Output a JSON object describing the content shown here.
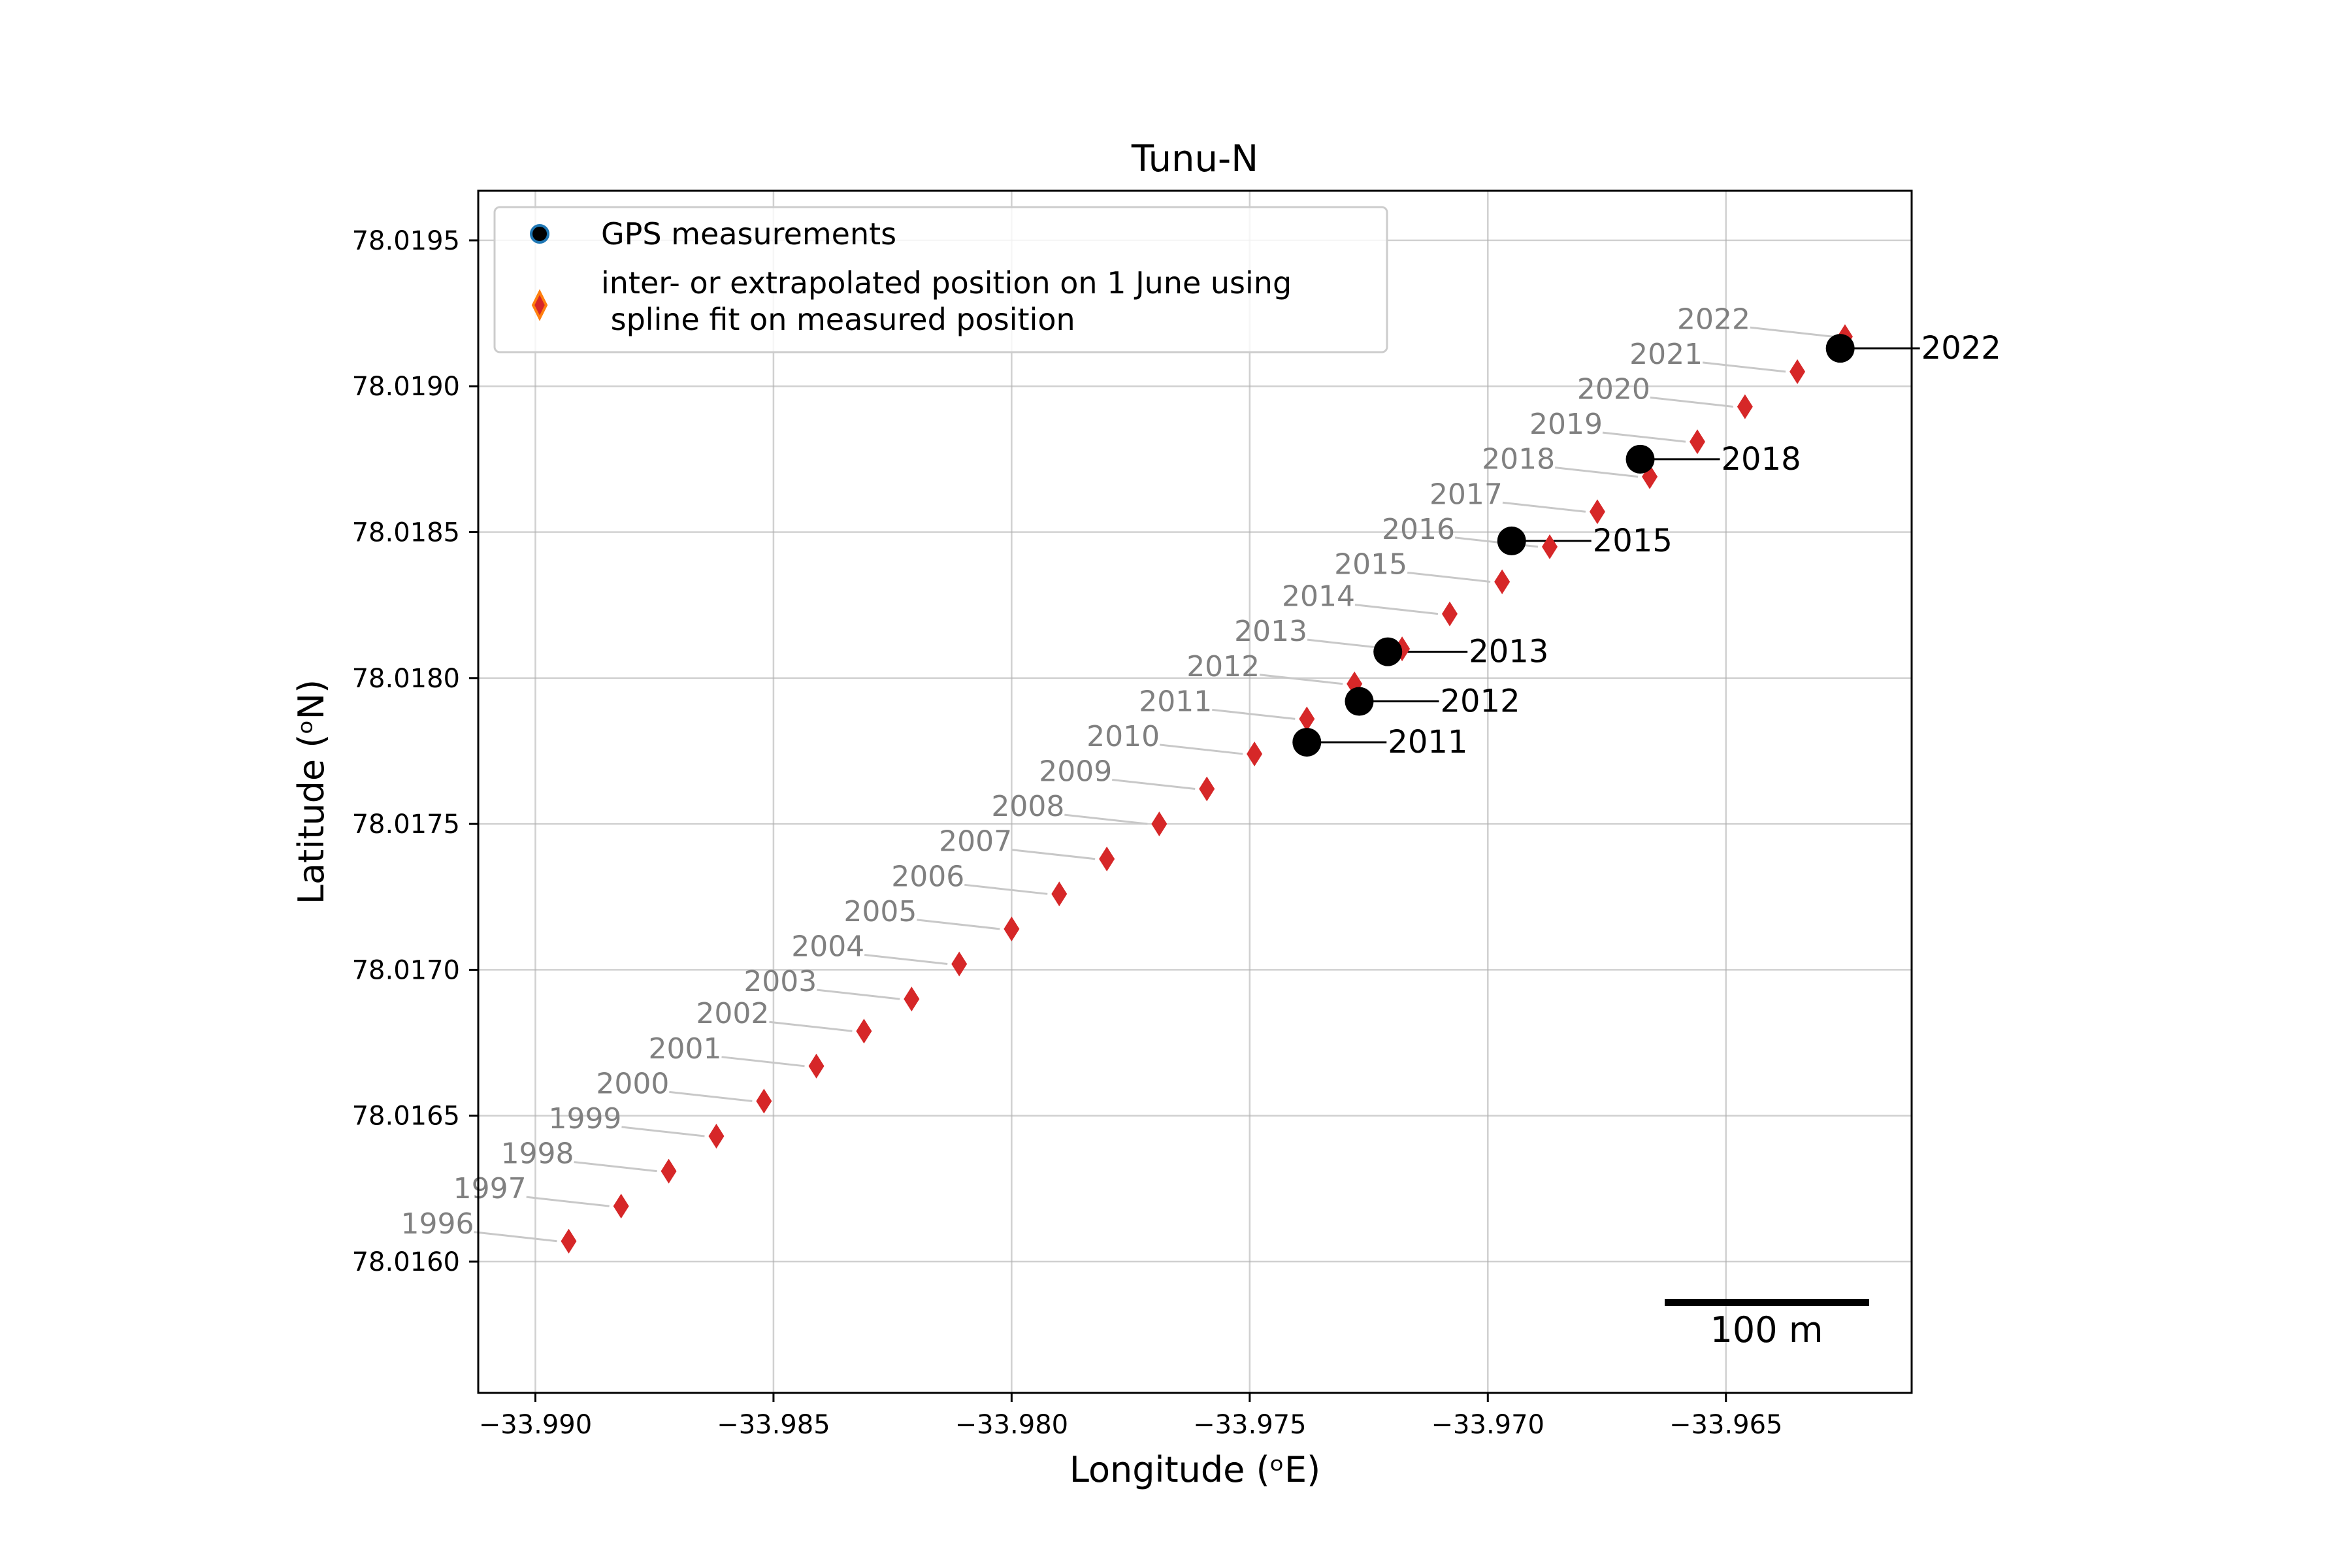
{
  "chart_data": {
    "type": "scatter",
    "title": "Tunu-N",
    "xlabel": "Longitude (ᵒE)",
    "ylabel": "Latitude (ᵒN)",
    "xlim": [
      -33.9912,
      -33.9611
    ],
    "ylim": [
      78.01555,
      78.01967
    ],
    "grid": true,
    "legend_position": "upper-left",
    "x_ticks": [
      -33.99,
      -33.985,
      -33.98,
      -33.975,
      -33.97,
      -33.965
    ],
    "x_tick_labels": [
      "−33.990",
      "−33.985",
      "−33.980",
      "−33.975",
      "−33.970",
      "−33.965"
    ],
    "y_ticks": [
      78.016,
      78.0165,
      78.017,
      78.0175,
      78.018,
      78.0185,
      78.019,
      78.0195
    ],
    "y_tick_labels": [
      "78.0160",
      "78.0165",
      "78.0170",
      "78.0175",
      "78.0180",
      "78.0185",
      "78.0190",
      "78.0195"
    ],
    "scale_bar_label": "100 m",
    "colors": {
      "gps": "#000000",
      "interp": "#d62728",
      "interp_edge": "#ff7f0e",
      "year_label": "#808080",
      "leader": "#c8c8c8"
    },
    "series": [
      {
        "name": "GPS measurements",
        "marker": "circle",
        "points": [
          {
            "label": "2011",
            "x": -33.9738,
            "y": 78.01778
          },
          {
            "label": "2012",
            "x": -33.9727,
            "y": 78.01792
          },
          {
            "label": "2013",
            "x": -33.9721,
            "y": 78.01809
          },
          {
            "label": "2015",
            "x": -33.9695,
            "y": 78.01847
          },
          {
            "label": "2018",
            "x": -33.9668,
            "y": 78.01875
          },
          {
            "label": "2022",
            "x": -33.9626,
            "y": 78.01913
          }
        ]
      },
      {
        "name": "inter- or extrapolated position on 1 June using\n spline fit on measured position",
        "marker": "diamond",
        "points": [
          {
            "label": "1996",
            "x": -33.9893,
            "y": 78.01607
          },
          {
            "label": "1997",
            "x": -33.9882,
            "y": 78.01619
          },
          {
            "label": "1998",
            "x": -33.9872,
            "y": 78.01631
          },
          {
            "label": "1999",
            "x": -33.9862,
            "y": 78.01643
          },
          {
            "label": "2000",
            "x": -33.9852,
            "y": 78.01655
          },
          {
            "label": "2001",
            "x": -33.9841,
            "y": 78.01667
          },
          {
            "label": "2002",
            "x": -33.9831,
            "y": 78.01679
          },
          {
            "label": "2003",
            "x": -33.9821,
            "y": 78.0169
          },
          {
            "label": "2004",
            "x": -33.9811,
            "y": 78.01702
          },
          {
            "label": "2005",
            "x": -33.98,
            "y": 78.01714
          },
          {
            "label": "2006",
            "x": -33.979,
            "y": 78.01726
          },
          {
            "label": "2007",
            "x": -33.978,
            "y": 78.01738
          },
          {
            "label": "2008",
            "x": -33.9769,
            "y": 78.0175
          },
          {
            "label": "2009",
            "x": -33.9759,
            "y": 78.01762
          },
          {
            "label": "2010",
            "x": -33.9749,
            "y": 78.01774
          },
          {
            "label": "2011",
            "x": -33.9738,
            "y": 78.01786
          },
          {
            "label": "2012",
            "x": -33.9728,
            "y": 78.01798
          },
          {
            "label": "2013",
            "x": -33.9718,
            "y": 78.0181
          },
          {
            "label": "2014",
            "x": -33.9708,
            "y": 78.01822
          },
          {
            "label": "2015",
            "x": -33.9697,
            "y": 78.01833
          },
          {
            "label": "2016",
            "x": -33.9687,
            "y": 78.01845
          },
          {
            "label": "2017",
            "x": -33.9677,
            "y": 78.01857
          },
          {
            "label": "2018",
            "x": -33.9666,
            "y": 78.01869
          },
          {
            "label": "2019",
            "x": -33.9656,
            "y": 78.01881
          },
          {
            "label": "2020",
            "x": -33.9646,
            "y": 78.01893
          },
          {
            "label": "2021",
            "x": -33.9635,
            "y": 78.01905
          },
          {
            "label": "2022",
            "x": -33.9625,
            "y": 78.01917
          }
        ]
      }
    ]
  }
}
